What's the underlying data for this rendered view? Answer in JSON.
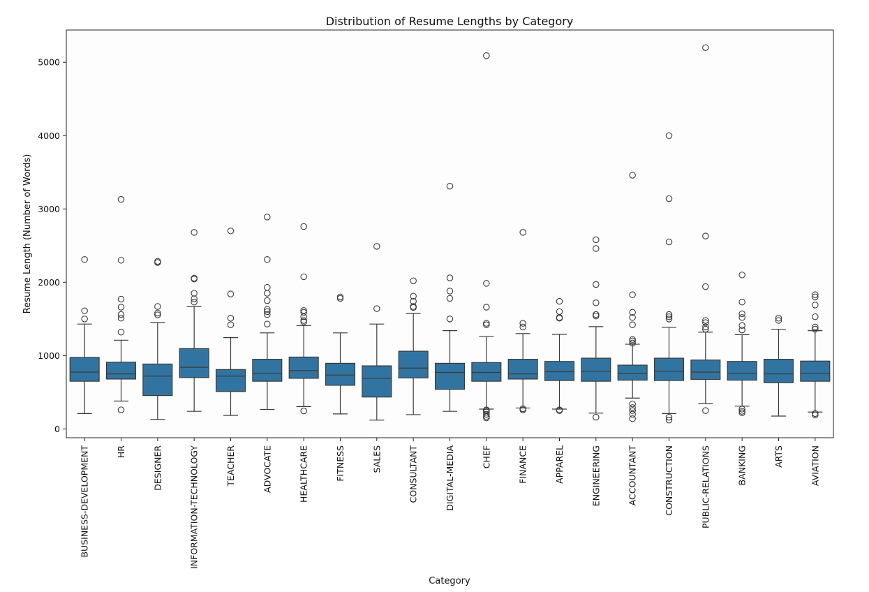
{
  "chart_data": {
    "type": "boxplot",
    "title": "Distribution of Resume Lengths by Category",
    "xlabel": "Category",
    "ylabel": "Resume Length (Number of Words)",
    "ylim": [
      -120,
      5440
    ],
    "yticks": [
      0,
      1000,
      2000,
      3000,
      4000,
      5000
    ],
    "box_color": "#3274a1",
    "line_color": "#3a3a3a",
    "background": "#fdfdfd",
    "categories": [
      "BUSINESS-DEVELOPMENT",
      "HR",
      "DESIGNER",
      "INFORMATION-TECHNOLOGY",
      "TEACHER",
      "ADVOCATE",
      "HEALTHCARE",
      "FITNESS",
      "SALES",
      "CONSULTANT",
      "DIGITAL-MEDIA",
      "CHEF",
      "FINANCE",
      "APPAREL",
      "ENGINEERING",
      "ACCOUNTANT",
      "CONSTRUCTION",
      "PUBLIC-RELATIONS",
      "BANKING",
      "ARTS",
      "AVIATION"
    ],
    "boxes": [
      {
        "whislo": 210,
        "q1": 650,
        "med": 775,
        "q3": 975,
        "whishi": 1430,
        "fliers": [
          1500,
          1610,
          2310
        ]
      },
      {
        "whislo": 380,
        "q1": 680,
        "med": 750,
        "q3": 910,
        "whishi": 1210,
        "fliers": [
          260,
          1320,
          1510,
          1560,
          1660,
          1770,
          2300,
          3130
        ]
      },
      {
        "whislo": 130,
        "q1": 455,
        "med": 720,
        "q3": 885,
        "whishi": 1450,
        "fliers": [
          1555,
          1580,
          1670,
          2270,
          2285
        ]
      },
      {
        "whislo": 240,
        "q1": 700,
        "med": 840,
        "q3": 1095,
        "whishi": 1670,
        "fliers": [
          1730,
          1775,
          1850,
          2045,
          2055,
          2680
        ]
      },
      {
        "whislo": 185,
        "q1": 510,
        "med": 720,
        "q3": 810,
        "whishi": 1245,
        "fliers": [
          1420,
          1510,
          1840,
          2700
        ]
      },
      {
        "whislo": 265,
        "q1": 650,
        "med": 760,
        "q3": 950,
        "whishi": 1310,
        "fliers": [
          1430,
          1560,
          1600,
          1630,
          1750,
          1850,
          1930,
          2310,
          2890
        ]
      },
      {
        "whislo": 305,
        "q1": 690,
        "med": 795,
        "q3": 980,
        "whishi": 1410,
        "fliers": [
          245,
          1460,
          1480,
          1530,
          1590,
          1615,
          2075,
          2760
        ]
      },
      {
        "whislo": 205,
        "q1": 595,
        "med": 735,
        "q3": 895,
        "whishi": 1310,
        "fliers": [
          1780,
          1800
        ]
      },
      {
        "whislo": 120,
        "q1": 435,
        "med": 690,
        "q3": 860,
        "whishi": 1430,
        "fliers": [
          1640,
          2490
        ]
      },
      {
        "whislo": 195,
        "q1": 695,
        "med": 830,
        "q3": 1060,
        "whishi": 1575,
        "fliers": [
          1655,
          1670,
          1740,
          1810,
          2020
        ]
      },
      {
        "whislo": 240,
        "q1": 540,
        "med": 770,
        "q3": 895,
        "whishi": 1340,
        "fliers": [
          1500,
          1780,
          1880,
          2060,
          3310
        ]
      },
      {
        "whislo": 270,
        "q1": 650,
        "med": 770,
        "q3": 905,
        "whishi": 1260,
        "fliers": [
          150,
          170,
          200,
          230,
          250,
          260,
          1420,
          1440,
          1660,
          1985,
          5090
        ]
      },
      {
        "whislo": 285,
        "q1": 680,
        "med": 750,
        "q3": 950,
        "whishi": 1300,
        "fliers": [
          260,
          275,
          1390,
          1440,
          2680
        ]
      },
      {
        "whislo": 270,
        "q1": 660,
        "med": 780,
        "q3": 920,
        "whishi": 1290,
        "fliers": [
          250,
          260,
          1510,
          1520,
          1600,
          1740
        ]
      },
      {
        "whislo": 215,
        "q1": 650,
        "med": 785,
        "q3": 965,
        "whishi": 1395,
        "fliers": [
          160,
          1540,
          1560,
          1720,
          1970,
          2460,
          2580
        ]
      },
      {
        "whislo": 420,
        "q1": 665,
        "med": 755,
        "q3": 870,
        "whishi": 1155,
        "fliers": [
          140,
          200,
          250,
          290,
          340,
          1170,
          1200,
          1220,
          1420,
          1520,
          1590,
          1830,
          3460
        ]
      },
      {
        "whislo": 210,
        "q1": 660,
        "med": 785,
        "q3": 965,
        "whishi": 1385,
        "fliers": [
          120,
          160,
          1500,
          1530,
          1560,
          2550,
          3140,
          4000
        ]
      },
      {
        "whislo": 345,
        "q1": 675,
        "med": 775,
        "q3": 940,
        "whishi": 1320,
        "fliers": [
          250,
          1360,
          1390,
          1450,
          1480,
          1940,
          2630,
          5200
        ]
      },
      {
        "whislo": 310,
        "q1": 665,
        "med": 760,
        "q3": 920,
        "whishi": 1285,
        "fliers": [
          220,
          240,
          270,
          1350,
          1410,
          1520,
          1570,
          1730,
          2100
        ]
      },
      {
        "whislo": 175,
        "q1": 630,
        "med": 750,
        "q3": 950,
        "whishi": 1360,
        "fliers": [
          1480,
          1510
        ]
      },
      {
        "whislo": 230,
        "q1": 650,
        "med": 760,
        "q3": 925,
        "whishi": 1340,
        "fliers": [
          190,
          210,
          1360,
          1390,
          1530,
          1690,
          1800,
          1830
        ]
      }
    ]
  }
}
